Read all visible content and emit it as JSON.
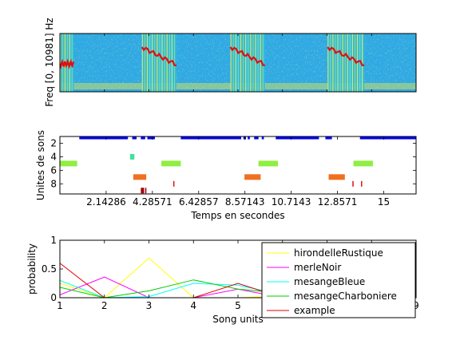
{
  "chart_data": [
    {
      "type": "heatmap",
      "title": "",
      "xlabel": "",
      "ylabel": "Freq [0, 10981] Hz",
      "description_colormap": "jet",
      "colors": {
        "background": "#3a8fe0",
        "mid": "#27c0e8",
        "hot": "#f0e84a",
        "peak": "#e01010"
      },
      "xlim": [
        0,
        16.5
      ],
      "events": [
        {
          "start": 0.0,
          "end": 0.65,
          "kind": "call"
        },
        {
          "start": 3.8,
          "end": 5.4,
          "kind": "call"
        },
        {
          "start": 7.9,
          "end": 9.5,
          "kind": "call"
        },
        {
          "start": 12.4,
          "end": 14.1,
          "kind": "call"
        }
      ]
    },
    {
      "type": "scatter",
      "title": "",
      "xlabel": "Temps en secondes",
      "ylabel": "Unites de sons",
      "xlim": [
        0,
        16.5
      ],
      "ylim": [
        1,
        9.5
      ],
      "y_reversed": true,
      "xticks": [
        2.14286,
        4.28571,
        6.42857,
        8.57143,
        10.7143,
        12.8571,
        15
      ],
      "xtick_labels": [
        "2.14286",
        "4.28571",
        "6.42857",
        "8.57143",
        "10.7143",
        "12.8571",
        "15"
      ],
      "yticks": [
        2,
        4,
        6,
        8
      ],
      "ytick_labels": [
        "2",
        "4",
        "6",
        "8"
      ],
      "segments": [
        {
          "unit": 1,
          "color": "#0000ff",
          "start": 0.9,
          "end": 3.15
        },
        {
          "unit": 1,
          "color": "#0000ff",
          "start": 3.35,
          "end": 3.55
        },
        {
          "unit": 1,
          "color": "#0000ff",
          "start": 3.75,
          "end": 3.95
        },
        {
          "unit": 1,
          "color": "#0000ff",
          "start": 4.05,
          "end": 4.4
        },
        {
          "unit": 1,
          "color": "#0000ff",
          "start": 5.6,
          "end": 8.4
        },
        {
          "unit": 1,
          "color": "#0000ff",
          "start": 8.5,
          "end": 8.62
        },
        {
          "unit": 1,
          "color": "#0000ff",
          "start": 8.7,
          "end": 8.8
        },
        {
          "unit": 1,
          "color": "#0000ff",
          "start": 9.0,
          "end": 9.2
        },
        {
          "unit": 1,
          "color": "#0000ff",
          "start": 9.35,
          "end": 9.45
        },
        {
          "unit": 1,
          "color": "#0000ff",
          "start": 10.0,
          "end": 12.0
        },
        {
          "unit": 1,
          "color": "#0000ff",
          "start": 12.3,
          "end": 12.6
        },
        {
          "unit": 1,
          "color": "#0000ff",
          "start": 13.9,
          "end": 16.5
        },
        {
          "unit": 4,
          "color": "#40e0a0",
          "start": 3.25,
          "end": 3.45
        },
        {
          "unit": 5,
          "color": "#90ee40",
          "start": 0.0,
          "end": 0.8
        },
        {
          "unit": 5,
          "color": "#90ee40",
          "start": 4.7,
          "end": 5.6
        },
        {
          "unit": 5,
          "color": "#90ee40",
          "start": 9.2,
          "end": 10.1
        },
        {
          "unit": 5,
          "color": "#90ee40",
          "start": 13.6,
          "end": 14.5
        },
        {
          "unit": 7,
          "color": "#f07020",
          "start": 3.4,
          "end": 4.0
        },
        {
          "unit": 7,
          "color": "#f07020",
          "start": 8.55,
          "end": 9.3
        },
        {
          "unit": 7,
          "color": "#f07020",
          "start": 12.45,
          "end": 13.2
        },
        {
          "unit": 8,
          "color": "#e01010",
          "start": 5.25,
          "end": 5.3
        },
        {
          "unit": 8,
          "color": "#e01010",
          "start": 13.55,
          "end": 13.6
        },
        {
          "unit": 8,
          "color": "#e01010",
          "start": 13.95,
          "end": 14.0
        },
        {
          "unit": 9,
          "color": "#a00000",
          "start": 3.75,
          "end": 3.9
        },
        {
          "unit": 9,
          "color": "#a00000",
          "start": 3.95,
          "end": 4.0
        }
      ]
    },
    {
      "type": "line",
      "title": "",
      "xlabel": "Song units",
      "ylabel": "probability",
      "xlim": [
        1,
        9
      ],
      "ylim": [
        0,
        1
      ],
      "xticks": [
        1,
        2,
        3,
        4,
        5,
        6,
        7,
        8,
        9
      ],
      "xtick_labels": [
        "1",
        "2",
        "3",
        "4",
        "5",
        "6",
        "7",
        "8",
        "9"
      ],
      "yticks": [
        0,
        0.5,
        1
      ],
      "ytick_labels": [
        "0",
        "0.5",
        "1"
      ],
      "legend_position": "right",
      "x": [
        1,
        2,
        3,
        4,
        5,
        6,
        7,
        8,
        9
      ],
      "series": [
        {
          "name": "hirondelleRustique",
          "color": "#ffff00",
          "values": [
            0.25,
            0.0,
            0.69,
            0.0,
            0.0,
            0.03,
            0.0,
            0.0,
            0.03
          ]
        },
        {
          "name": "merleNoir",
          "color": "#ff00ff",
          "values": [
            0.05,
            0.36,
            0.0,
            0.0,
            0.15,
            0.0,
            0.0,
            0.0,
            0.0
          ]
        },
        {
          "name": "mesangeBleue",
          "color": "#00ffff",
          "values": [
            0.3,
            0.0,
            0.02,
            0.25,
            0.22,
            0.05,
            0.05,
            0.03,
            0.08
          ]
        },
        {
          "name": "mesangeCharboniere",
          "color": "#00cc00",
          "values": [
            0.18,
            0.0,
            0.12,
            0.31,
            0.15,
            0.08,
            0.08,
            0.08,
            0.18
          ]
        },
        {
          "name": "example",
          "color": "#e00000",
          "values": [
            0.6,
            0.0,
            0.0,
            0.0,
            0.25,
            0.0,
            0.0,
            0.0,
            0.0
          ]
        }
      ]
    }
  ]
}
